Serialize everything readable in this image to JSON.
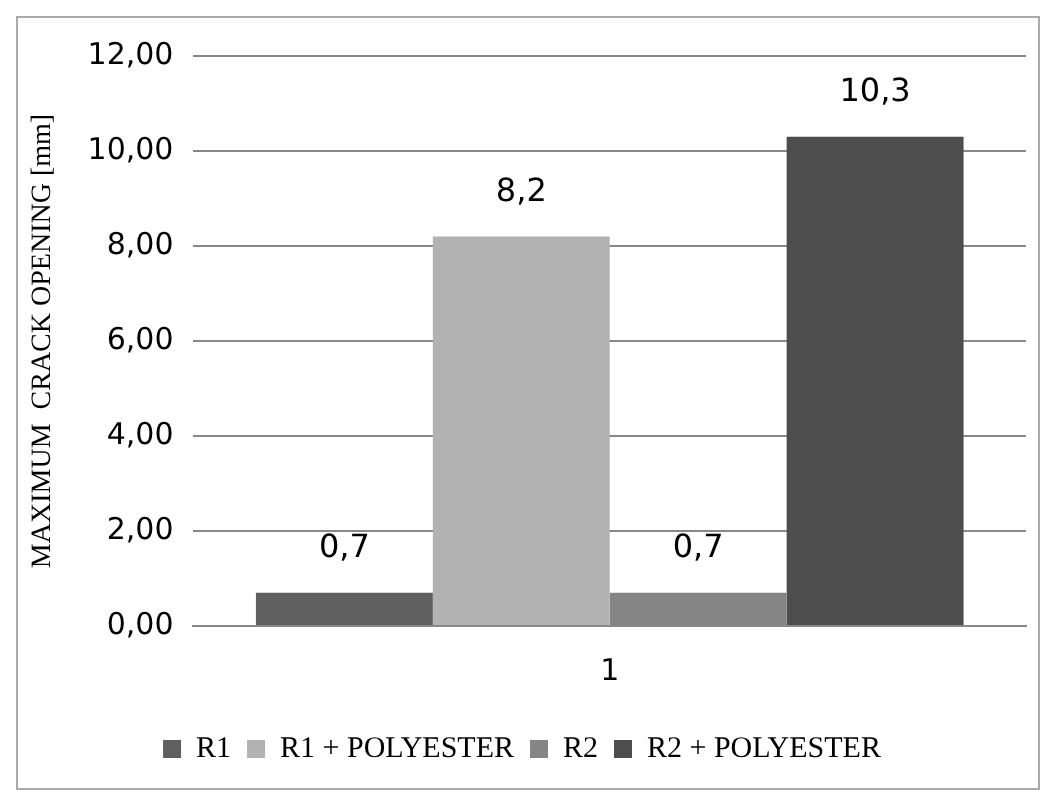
{
  "chart_data": {
    "type": "bar",
    "ylabel": "MAXIMUM  CRACK OPENING [mm]",
    "categories": [
      "1"
    ],
    "series": [
      {
        "name": "R1",
        "color": "#5f5f5f",
        "values": [
          0.7
        ],
        "value_labels": [
          "0,7"
        ]
      },
      {
        "name": "R1 + POLYESTER",
        "color": "#b2b2b2",
        "values": [
          8.2
        ],
        "value_labels": [
          "8,2"
        ]
      },
      {
        "name": "R2",
        "color": "#858585",
        "values": [
          0.7
        ],
        "value_labels": [
          "0,7"
        ]
      },
      {
        "name": "R2 + POLYESTER",
        "color": "#4d4d4d",
        "values": [
          10.3
        ],
        "value_labels": [
          "10,3"
        ]
      }
    ],
    "ylim": [
      0,
      12
    ],
    "yticks": [
      {
        "value": 0,
        "label": "0,00"
      },
      {
        "value": 2,
        "label": "2,00"
      },
      {
        "value": 4,
        "label": "4,00"
      },
      {
        "value": 6,
        "label": "6,00"
      },
      {
        "value": 8,
        "label": "8,00"
      },
      {
        "value": 10,
        "label": "10,00"
      },
      {
        "value": 12,
        "label": "12,00"
      }
    ],
    "grid": "y",
    "legend": "bottom"
  }
}
